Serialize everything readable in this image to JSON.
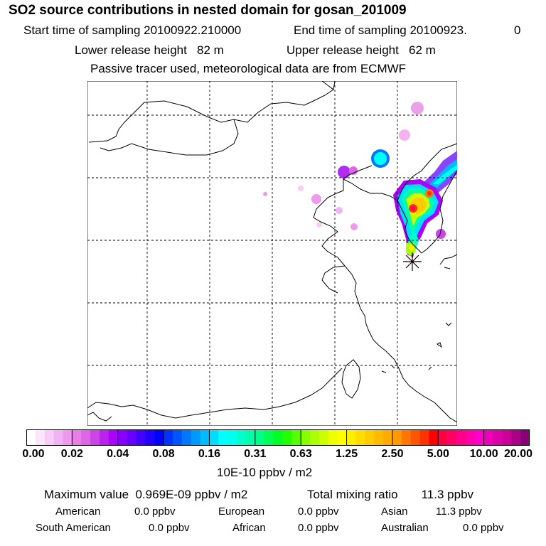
{
  "title": "SO2 source contributions in nested domain for gosan_201009",
  "sampling": {
    "start_label": "Start time of sampling 20100922.210000",
    "end_label": "End time of sampling 20100923.",
    "end_value": "0"
  },
  "release": {
    "lower": "Lower release height   82 m",
    "upper": "Upper release height   62 m"
  },
  "note": "Passive tracer used, meteorological data are from ECMWF",
  "colorbar": {
    "units": "10E-10 ppbv / m2",
    "ticks": [
      "0.00",
      "0.02",
      "0.04",
      "0.08",
      "0.16",
      "0.31",
      "0.63",
      "1.25",
      "2.50",
      "5.00",
      "10.00",
      "20.00"
    ],
    "colors": [
      [
        "#ffffff",
        "#fbe6fb",
        "#f7ccf7",
        "#f2b3f2",
        "#ee99ee"
      ],
      [
        "#e680e6",
        "#dd66e6",
        "#cc44e6",
        "#bb22ee",
        "#aa00ff"
      ],
      [
        "#8800ff",
        "#6600ff",
        "#4400ff",
        "#2200ff",
        "#0000ff"
      ],
      [
        "#0033ff",
        "#0055ff",
        "#0077ff",
        "#0099ff",
        "#00bbff"
      ],
      [
        "#00ddff",
        "#00ffff",
        "#00ffee",
        "#00ffcc",
        "#00ffaa"
      ],
      [
        "#00ff88",
        "#00ff55",
        "#00ff22",
        "#22ff00",
        "#55ff00"
      ],
      [
        "#88ff00",
        "#aaff00",
        "#ccff00",
        "#eeff00",
        "#ffff00"
      ],
      [
        "#ffee00",
        "#ffdd00",
        "#ffcc00",
        "#ffbb00",
        "#ffaa00"
      ],
      [
        "#ff9900",
        "#ff7700",
        "#ff5500",
        "#ff3300",
        "#ff0000"
      ],
      [
        "#ff0044",
        "#ff0066",
        "#ff0088",
        "#ff00aa",
        "#ff00cc"
      ],
      [
        "#ee00bb",
        "#dd00aa",
        "#cc0099",
        "#aa0088",
        "#880077"
      ]
    ]
  },
  "summary": {
    "max_label": "Maximum value  0.969E-09 ppbv / m2",
    "total_label": "Total mixing ratio       11.3 ppbv"
  },
  "sources": {
    "american_label": "American",
    "american_value": "0.0 ppbv",
    "european_label": "European",
    "european_value": "0.0 ppbv",
    "asian_label": "Asian",
    "asian_value": "11.3 ppbv",
    "south_american_label": "South American",
    "south_american_value": "0.0 ppbv",
    "african_label": "African",
    "african_value": "0.0 ppbv",
    "australian_label": "Australian",
    "australian_value": "0.0 ppbv"
  },
  "chart_data": {
    "type": "heatmap",
    "title": "SO2 source contributions in nested domain for gosan_201009",
    "colorbar_label": "10E-10 ppbv / m2",
    "colorbar_ticks": [
      0.0,
      0.02,
      0.04,
      0.08,
      0.16,
      0.31,
      0.63,
      1.25,
      2.5,
      5.0,
      10.0,
      20.0
    ],
    "max_value": "0.969E-09 ppbv / m2",
    "total_mixing_ratio": "11.3 ppbv",
    "receptor": "gosan",
    "grid": "dashed lat/lon lines"
  }
}
